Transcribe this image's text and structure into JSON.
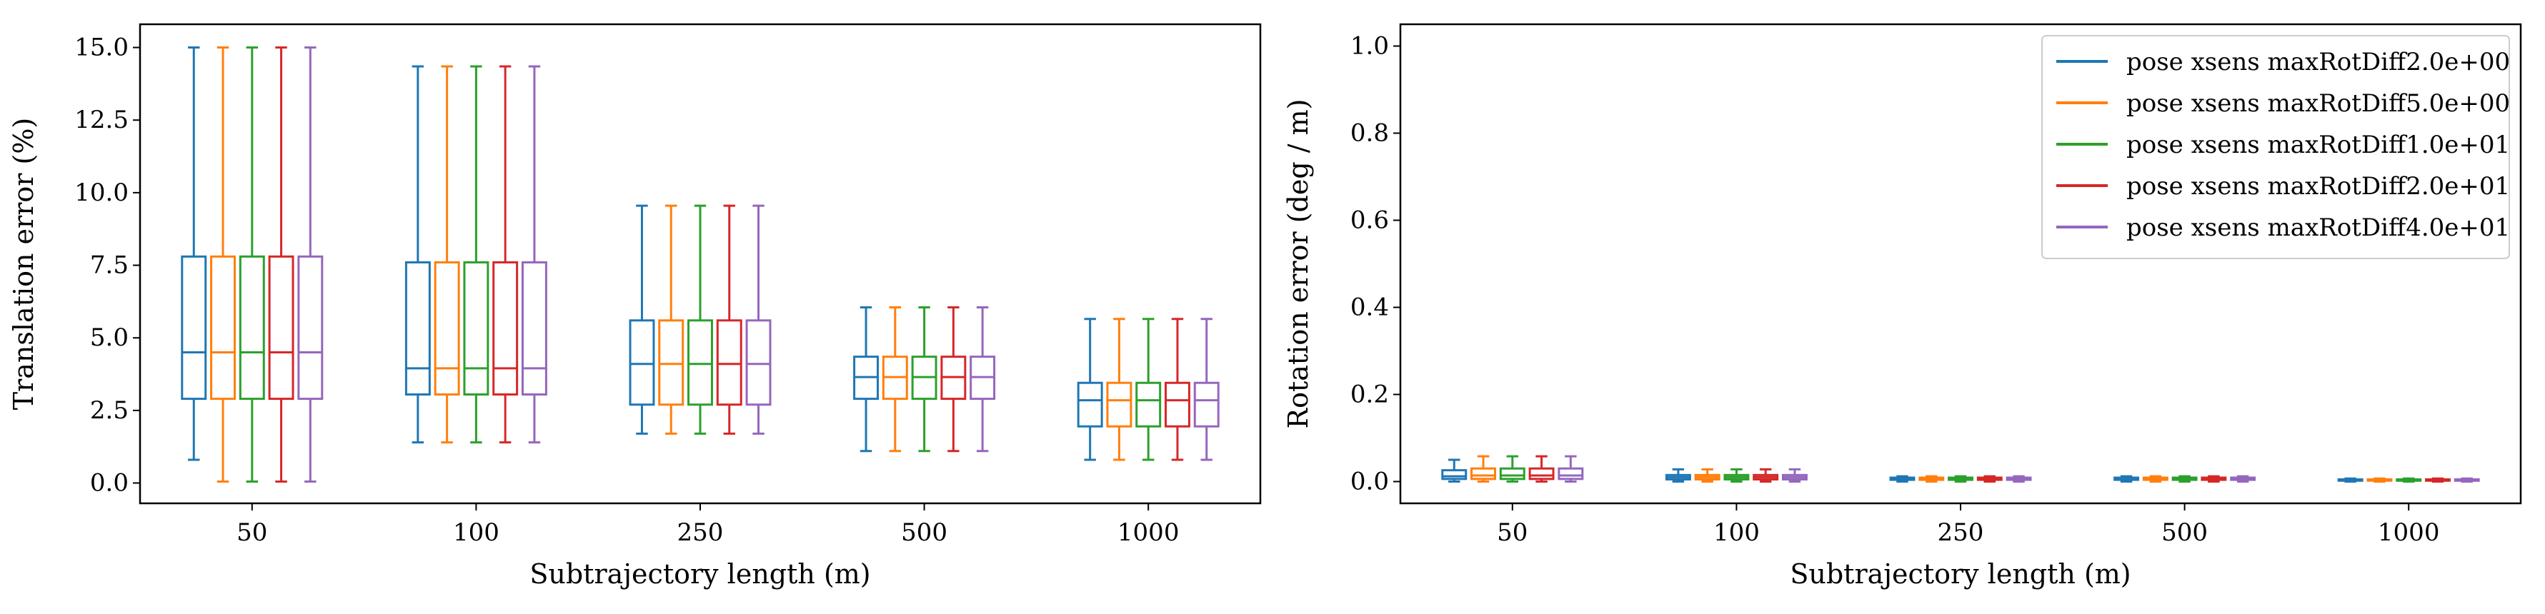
{
  "colors": [
    "#1f77b4",
    "#ff7f0e",
    "#2ca02c",
    "#d62728",
    "#9467bd"
  ],
  "chart_data": [
    {
      "type": "box",
      "xlabel": "Subtrajectory length (m)",
      "ylabel": "Translation error (%)",
      "categories": [
        "50",
        "100",
        "250",
        "500",
        "1000"
      ],
      "ylim": [
        -0.7,
        15.8
      ],
      "yticks": [
        "0.0",
        "2.5",
        "5.0",
        "7.5",
        "10.0",
        "12.5",
        "15.0"
      ],
      "ytick_values": [
        0,
        2.5,
        5,
        7.5,
        10,
        12.5,
        15
      ],
      "grid": false,
      "legend": null,
      "series": [
        {
          "name": "pose xsens maxRotDiff2.0e+00",
          "boxes": [
            {
              "whislo": 0.8,
              "q1": 2.9,
              "med": 4.5,
              "q3": 7.8,
              "whishi": 15.0
            },
            {
              "whislo": 1.4,
              "q1": 3.05,
              "med": 3.95,
              "q3": 7.6,
              "whishi": 14.35
            },
            {
              "whislo": 1.7,
              "q1": 2.7,
              "med": 4.1,
              "q3": 5.6,
              "whishi": 9.55
            },
            {
              "whislo": 1.1,
              "q1": 2.9,
              "med": 3.65,
              "q3": 4.35,
              "whishi": 6.05
            },
            {
              "whislo": 0.8,
              "q1": 1.95,
              "med": 2.85,
              "q3": 3.45,
              "whishi": 5.65
            }
          ]
        },
        {
          "name": "pose xsens maxRotDiff5.0e+00",
          "boxes": [
            {
              "whislo": 0.05,
              "q1": 2.9,
              "med": 4.5,
              "q3": 7.8,
              "whishi": 15.0
            },
            {
              "whislo": 1.4,
              "q1": 3.05,
              "med": 3.95,
              "q3": 7.6,
              "whishi": 14.35
            },
            {
              "whislo": 1.7,
              "q1": 2.7,
              "med": 4.1,
              "q3": 5.6,
              "whishi": 9.55
            },
            {
              "whislo": 1.1,
              "q1": 2.9,
              "med": 3.65,
              "q3": 4.35,
              "whishi": 6.05
            },
            {
              "whislo": 0.8,
              "q1": 1.95,
              "med": 2.85,
              "q3": 3.45,
              "whishi": 5.65
            }
          ]
        },
        {
          "name": "pose xsens maxRotDiff1.0e+01",
          "boxes": [
            {
              "whislo": 0.05,
              "q1": 2.9,
              "med": 4.5,
              "q3": 7.8,
              "whishi": 15.0
            },
            {
              "whislo": 1.4,
              "q1": 3.05,
              "med": 3.95,
              "q3": 7.6,
              "whishi": 14.35
            },
            {
              "whislo": 1.7,
              "q1": 2.7,
              "med": 4.1,
              "q3": 5.6,
              "whishi": 9.55
            },
            {
              "whislo": 1.1,
              "q1": 2.9,
              "med": 3.65,
              "q3": 4.35,
              "whishi": 6.05
            },
            {
              "whislo": 0.8,
              "q1": 1.95,
              "med": 2.85,
              "q3": 3.45,
              "whishi": 5.65
            }
          ]
        },
        {
          "name": "pose xsens maxRotDiff2.0e+01",
          "boxes": [
            {
              "whislo": 0.05,
              "q1": 2.9,
              "med": 4.5,
              "q3": 7.8,
              "whishi": 15.0
            },
            {
              "whislo": 1.4,
              "q1": 3.05,
              "med": 3.95,
              "q3": 7.6,
              "whishi": 14.35
            },
            {
              "whislo": 1.7,
              "q1": 2.7,
              "med": 4.1,
              "q3": 5.6,
              "whishi": 9.55
            },
            {
              "whislo": 1.1,
              "q1": 2.9,
              "med": 3.65,
              "q3": 4.35,
              "whishi": 6.05
            },
            {
              "whislo": 0.8,
              "q1": 1.95,
              "med": 2.85,
              "q3": 3.45,
              "whishi": 5.65
            }
          ]
        },
        {
          "name": "pose xsens maxRotDiff4.0e+01",
          "boxes": [
            {
              "whislo": 0.05,
              "q1": 2.9,
              "med": 4.5,
              "q3": 7.8,
              "whishi": 15.0
            },
            {
              "whislo": 1.4,
              "q1": 3.05,
              "med": 3.95,
              "q3": 7.6,
              "whishi": 14.35
            },
            {
              "whislo": 1.7,
              "q1": 2.7,
              "med": 4.1,
              "q3": 5.6,
              "whishi": 9.55
            },
            {
              "whislo": 1.1,
              "q1": 2.9,
              "med": 3.65,
              "q3": 4.35,
              "whishi": 6.05
            },
            {
              "whislo": 0.8,
              "q1": 1.95,
              "med": 2.85,
              "q3": 3.45,
              "whishi": 5.65
            }
          ]
        }
      ]
    },
    {
      "type": "box",
      "xlabel": "Subtrajectory length (m)",
      "ylabel": "Rotation error (deg / m)",
      "categories": [
        "50",
        "100",
        "250",
        "500",
        "1000"
      ],
      "ylim": [
        -0.05,
        1.05
      ],
      "yticks": [
        "0.0",
        "0.2",
        "0.4",
        "0.6",
        "0.8",
        "1.0"
      ],
      "ytick_values": [
        0,
        0.2,
        0.4,
        0.6,
        0.8,
        1.0
      ],
      "grid": false,
      "legend": "top-right",
      "series": [
        {
          "name": "pose xsens maxRotDiff2.0e+00",
          "boxes": [
            {
              "whislo": 0.0,
              "q1": 0.006,
              "med": 0.012,
              "q3": 0.026,
              "whislo_cap": true,
              "whishi": 0.05
            },
            {
              "whislo": 0.0,
              "q1": 0.005,
              "med": 0.01,
              "q3": 0.015,
              "whishi": 0.028
            },
            {
              "whislo": 0.0,
              "q1": 0.004,
              "med": 0.006,
              "q3": 0.009,
              "whishi": 0.012
            },
            {
              "whislo": 0.0,
              "q1": 0.004,
              "med": 0.006,
              "q3": 0.009,
              "whishi": 0.012
            },
            {
              "whislo": 0.0,
              "q1": 0.002,
              "med": 0.003,
              "q3": 0.005,
              "whishi": 0.007
            }
          ]
        },
        {
          "name": "pose xsens maxRotDiff5.0e+00",
          "boxes": [
            {
              "whislo": 0.0,
              "q1": 0.006,
              "med": 0.014,
              "q3": 0.03,
              "whishi": 0.058
            },
            {
              "whislo": 0.0,
              "q1": 0.005,
              "med": 0.01,
              "q3": 0.015,
              "whishi": 0.028
            },
            {
              "whislo": 0.0,
              "q1": 0.004,
              "med": 0.006,
              "q3": 0.009,
              "whishi": 0.012
            },
            {
              "whislo": 0.0,
              "q1": 0.004,
              "med": 0.006,
              "q3": 0.009,
              "whishi": 0.012
            },
            {
              "whislo": 0.0,
              "q1": 0.002,
              "med": 0.003,
              "q3": 0.005,
              "whishi": 0.007
            }
          ]
        },
        {
          "name": "pose xsens maxRotDiff1.0e+01",
          "boxes": [
            {
              "whislo": 0.0,
              "q1": 0.006,
              "med": 0.014,
              "q3": 0.03,
              "whishi": 0.058
            },
            {
              "whislo": 0.0,
              "q1": 0.005,
              "med": 0.01,
              "q3": 0.015,
              "whishi": 0.028
            },
            {
              "whislo": 0.0,
              "q1": 0.004,
              "med": 0.006,
              "q3": 0.009,
              "whishi": 0.012
            },
            {
              "whislo": 0.0,
              "q1": 0.004,
              "med": 0.006,
              "q3": 0.009,
              "whishi": 0.012
            },
            {
              "whislo": 0.0,
              "q1": 0.002,
              "med": 0.003,
              "q3": 0.005,
              "whishi": 0.007
            }
          ]
        },
        {
          "name": "pose xsens maxRotDiff2.0e+01",
          "boxes": [
            {
              "whislo": 0.0,
              "q1": 0.006,
              "med": 0.014,
              "q3": 0.03,
              "whishi": 0.058
            },
            {
              "whislo": 0.0,
              "q1": 0.005,
              "med": 0.01,
              "q3": 0.015,
              "whishi": 0.028
            },
            {
              "whislo": 0.0,
              "q1": 0.004,
              "med": 0.006,
              "q3": 0.009,
              "whishi": 0.012
            },
            {
              "whislo": 0.0,
              "q1": 0.004,
              "med": 0.006,
              "q3": 0.009,
              "whishi": 0.012
            },
            {
              "whislo": 0.0,
              "q1": 0.002,
              "med": 0.003,
              "q3": 0.005,
              "whishi": 0.007
            }
          ]
        },
        {
          "name": "pose xsens maxRotDiff4.0e+01",
          "boxes": [
            {
              "whislo": 0.0,
              "q1": 0.006,
              "med": 0.014,
              "q3": 0.03,
              "whishi": 0.058
            },
            {
              "whislo": 0.0,
              "q1": 0.005,
              "med": 0.01,
              "q3": 0.015,
              "whishi": 0.028
            },
            {
              "whislo": 0.0,
              "q1": 0.004,
              "med": 0.006,
              "q3": 0.009,
              "whishi": 0.012
            },
            {
              "whislo": 0.0,
              "q1": 0.004,
              "med": 0.006,
              "q3": 0.009,
              "whishi": 0.012
            },
            {
              "whislo": 0.0,
              "q1": 0.002,
              "med": 0.003,
              "q3": 0.005,
              "whishi": 0.007
            }
          ]
        }
      ]
    }
  ]
}
